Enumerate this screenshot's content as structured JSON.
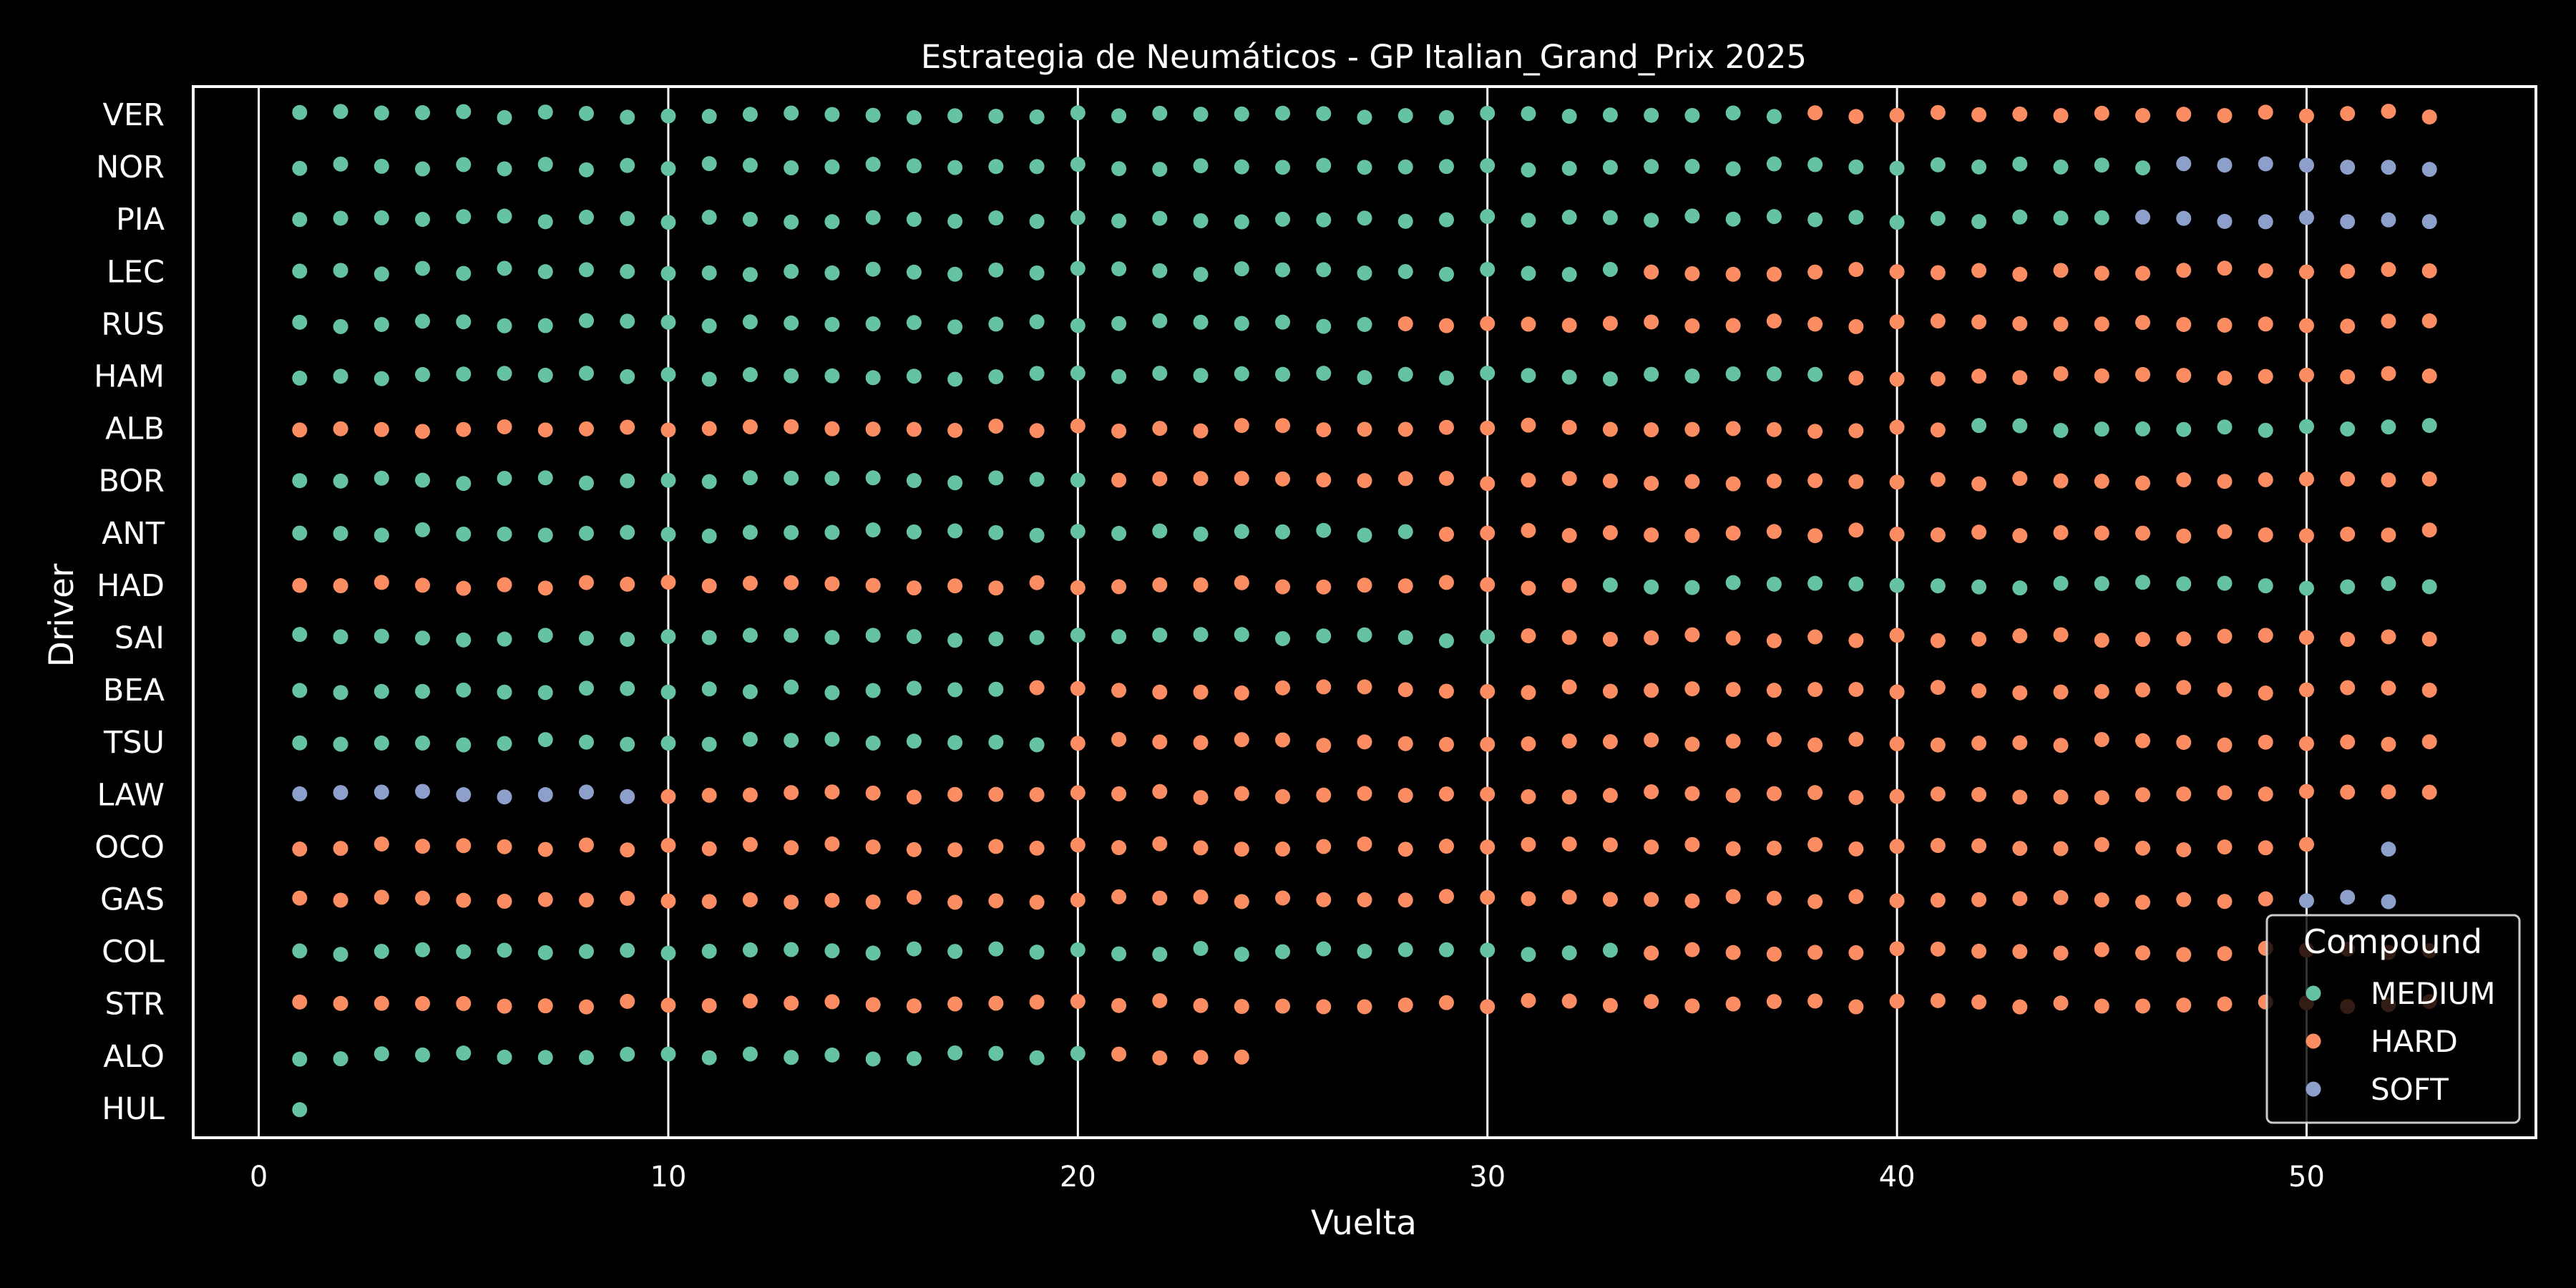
{
  "chart_data": {
    "type": "scatter",
    "title": "Estrategia de Neumáticos - GP Italian_Grand_Prix 2025",
    "xlabel": "Vuelta",
    "ylabel": "Driver",
    "xlim": [
      -1.6,
      55.6
    ],
    "xticks": [
      "0",
      "10",
      "20",
      "30",
      "40",
      "50"
    ],
    "grid": "vertical",
    "drivers": [
      "VER",
      "NOR",
      "PIA",
      "LEC",
      "RUS",
      "HAM",
      "ALB",
      "BOR",
      "ANT",
      "HAD",
      "SAI",
      "BEA",
      "TSU",
      "LAW",
      "OCO",
      "GAS",
      "COL",
      "STR",
      "ALO",
      "HUL"
    ],
    "compound_colors": {
      "MEDIUM": "#66c2a5",
      "HARD": "#fc8d62",
      "SOFT": "#8da0cb"
    },
    "legend": {
      "title": "Compound",
      "position": "lower-right",
      "entries": [
        "MEDIUM",
        "HARD",
        "SOFT"
      ]
    },
    "stints": {
      "VER": [
        {
          "compound": "MEDIUM",
          "from": 1,
          "to": 37
        },
        {
          "compound": "HARD",
          "from": 38,
          "to": 53
        }
      ],
      "NOR": [
        {
          "compound": "MEDIUM",
          "from": 1,
          "to": 46
        },
        {
          "compound": "SOFT",
          "from": 47,
          "to": 53
        }
      ],
      "PIA": [
        {
          "compound": "MEDIUM",
          "from": 1,
          "to": 45
        },
        {
          "compound": "SOFT",
          "from": 46,
          "to": 53
        }
      ],
      "LEC": [
        {
          "compound": "MEDIUM",
          "from": 1,
          "to": 33
        },
        {
          "compound": "HARD",
          "from": 34,
          "to": 53
        }
      ],
      "RUS": [
        {
          "compound": "MEDIUM",
          "from": 1,
          "to": 27
        },
        {
          "compound": "HARD",
          "from": 28,
          "to": 53
        }
      ],
      "HAM": [
        {
          "compound": "MEDIUM",
          "from": 1,
          "to": 38
        },
        {
          "compound": "HARD",
          "from": 39,
          "to": 53
        }
      ],
      "ALB": [
        {
          "compound": "HARD",
          "from": 1,
          "to": 41
        },
        {
          "compound": "MEDIUM",
          "from": 42,
          "to": 53
        }
      ],
      "BOR": [
        {
          "compound": "MEDIUM",
          "from": 1,
          "to": 20
        },
        {
          "compound": "HARD",
          "from": 21,
          "to": 53
        }
      ],
      "ANT": [
        {
          "compound": "MEDIUM",
          "from": 1,
          "to": 28
        },
        {
          "compound": "HARD",
          "from": 29,
          "to": 53
        }
      ],
      "HAD": [
        {
          "compound": "HARD",
          "from": 1,
          "to": 32
        },
        {
          "compound": "MEDIUM",
          "from": 33,
          "to": 53
        }
      ],
      "SAI": [
        {
          "compound": "MEDIUM",
          "from": 1,
          "to": 30
        },
        {
          "compound": "HARD",
          "from": 31,
          "to": 53
        }
      ],
      "BEA": [
        {
          "compound": "MEDIUM",
          "from": 1,
          "to": 18
        },
        {
          "compound": "HARD",
          "from": 19,
          "to": 53
        }
      ],
      "TSU": [
        {
          "compound": "MEDIUM",
          "from": 1,
          "to": 19
        },
        {
          "compound": "HARD",
          "from": 20,
          "to": 53
        }
      ],
      "LAW": [
        {
          "compound": "SOFT",
          "from": 1,
          "to": 9
        },
        {
          "compound": "HARD",
          "from": 10,
          "to": 53
        }
      ],
      "OCO": [
        {
          "compound": "HARD",
          "from": 1,
          "to": 50
        },
        {
          "compound": "SOFT",
          "from": 52,
          "to": 52
        }
      ],
      "GAS": [
        {
          "compound": "HARD",
          "from": 1,
          "to": 49
        },
        {
          "compound": "SOFT",
          "from": 50,
          "to": 52
        }
      ],
      "COL": [
        {
          "compound": "MEDIUM",
          "from": 1,
          "to": 33
        },
        {
          "compound": "HARD",
          "from": 34,
          "to": 53
        }
      ],
      "STR": [
        {
          "compound": "HARD",
          "from": 1,
          "to": 53
        }
      ],
      "ALO": [
        {
          "compound": "MEDIUM",
          "from": 1,
          "to": 20
        },
        {
          "compound": "HARD",
          "from": 21,
          "to": 24
        }
      ],
      "HUL": [
        {
          "compound": "MEDIUM",
          "from": 1,
          "to": 1
        }
      ]
    }
  }
}
